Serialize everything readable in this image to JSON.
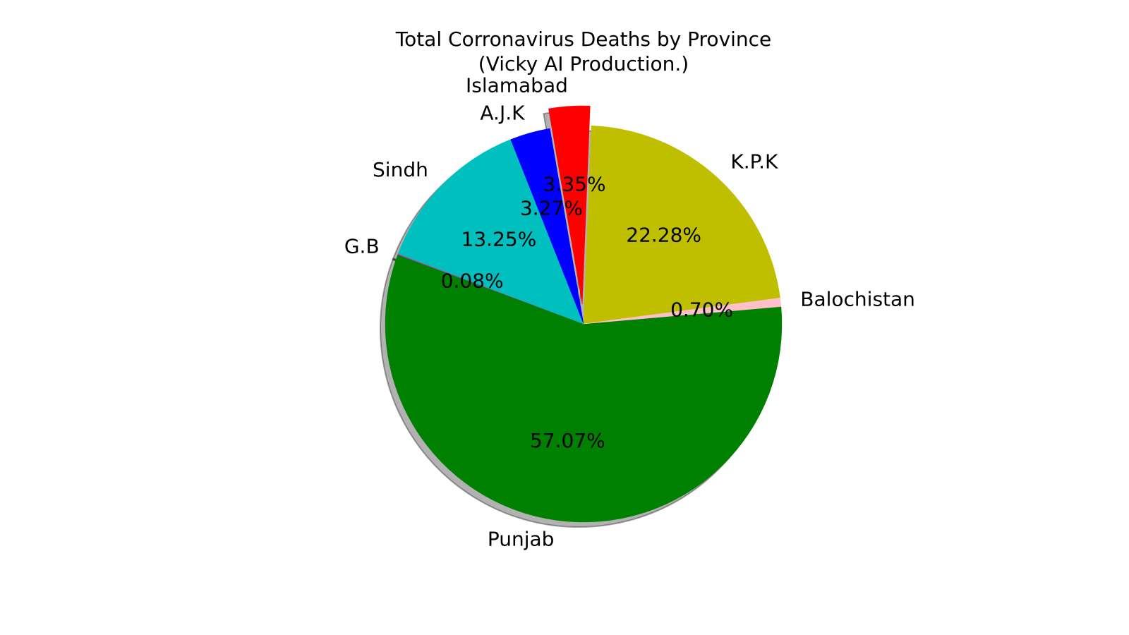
{
  "chart_data": {
    "type": "pie",
    "title": "Total Corronavirus Deaths by Province",
    "subtitle": "(Vicky AI Production.)",
    "slices": [
      {
        "label": "Punjab",
        "percent": 57.07,
        "percent_label": "57.07%",
        "color": "#008000",
        "explode": false
      },
      {
        "label": "G.B",
        "percent": 0.08,
        "percent_label": "0.08%",
        "color": "#bf40bf",
        "explode": false
      },
      {
        "label": "Sindh",
        "percent": 13.25,
        "percent_label": "13.25%",
        "color": "#00bfbf",
        "explode": false
      },
      {
        "label": "A.J.K",
        "percent": 3.27,
        "percent_label": "3.27%",
        "color": "#0000ff",
        "explode": false
      },
      {
        "label": "Islamabad",
        "percent": 3.35,
        "percent_label": "3.35%",
        "color": "#ff0000",
        "explode": true
      },
      {
        "label": "K.P.K",
        "percent": 22.28,
        "percent_label": "22.28%",
        "color": "#bfbf00",
        "explode": false
      },
      {
        "label": "Balochistan",
        "percent": 0.7,
        "percent_label": "0.70%",
        "color": "#ffc0cb",
        "explode": false
      }
    ],
    "shadow": true,
    "legend": "none"
  }
}
